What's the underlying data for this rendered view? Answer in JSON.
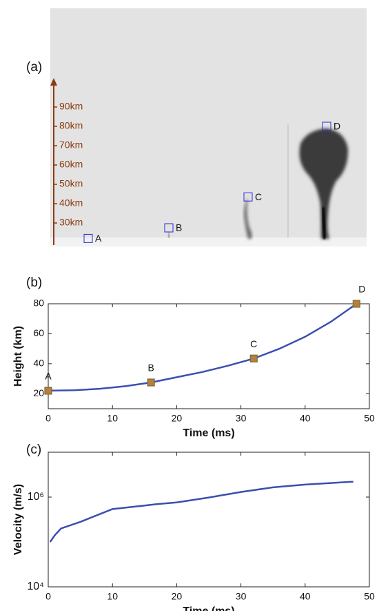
{
  "chart_data": [
    {
      "type": "image",
      "panel": "(a)",
      "ylim": [
        20,
        100
      ],
      "yticks": [
        {
          "value": 30,
          "label": "30km"
        },
        {
          "value": 40,
          "label": "40km"
        },
        {
          "value": 50,
          "label": "50km"
        },
        {
          "value": 60,
          "label": "60km"
        },
        {
          "value": 70,
          "label": "70km"
        },
        {
          "value": 80,
          "label": "80km"
        },
        {
          "value": 90,
          "label": "90km"
        }
      ],
      "color": "#8b3a10",
      "points": [
        "A",
        "B",
        "C",
        "D"
      ]
    },
    {
      "type": "line",
      "panel": "(b)",
      "xlabel": "Time (ms)",
      "ylabel": "Height (km)",
      "xlim": [
        0,
        50
      ],
      "xticks": [
        0,
        10,
        20,
        30,
        40,
        50
      ],
      "ylim": [
        10,
        80
      ],
      "yticks": [
        20,
        40,
        60,
        80
      ],
      "series": [
        {
          "color": "#3a4fb0",
          "x": [
            0,
            4,
            8,
            12,
            16,
            20,
            24,
            28,
            32,
            36,
            40,
            44,
            48
          ],
          "values": [
            22,
            22.3,
            23.3,
            25,
            27.5,
            31,
            34.5,
            38.7,
            43.5,
            50,
            58,
            68,
            80
          ]
        }
      ],
      "points": [
        {
          "label": "A",
          "x": 0,
          "y": 22
        },
        {
          "label": "B",
          "x": 16,
          "y": 27.5
        },
        {
          "label": "C",
          "x": 32,
          "y": 43.5
        },
        {
          "label": "D",
          "x": 48,
          "y": 80
        }
      ],
      "marker_color": "#b5803c"
    },
    {
      "type": "line",
      "panel": "(c)",
      "xlabel": "Time (ms)",
      "ylabel": "Velocity (m/s)",
      "log_y": true,
      "xlim": [
        0,
        50
      ],
      "xticks": [
        0,
        10,
        20,
        30,
        40,
        50
      ],
      "ylim": [
        10000,
        10000000
      ],
      "yticks": [
        {
          "value": 10000,
          "label": "10⁴"
        },
        {
          "value": 1000000,
          "label": "10⁶"
        }
      ],
      "series": [
        {
          "color": "#3a4fb0",
          "x": [
            0.3,
            1,
            2,
            5,
            10,
            15,
            17,
            20,
            25,
            30,
            35,
            40,
            47.5
          ],
          "values": [
            100000,
            140000,
            200000,
            280000,
            540000,
            650000,
            700000,
            760000,
            980000,
            1300000,
            1650000,
            1900000,
            2200000
          ]
        }
      ]
    }
  ]
}
